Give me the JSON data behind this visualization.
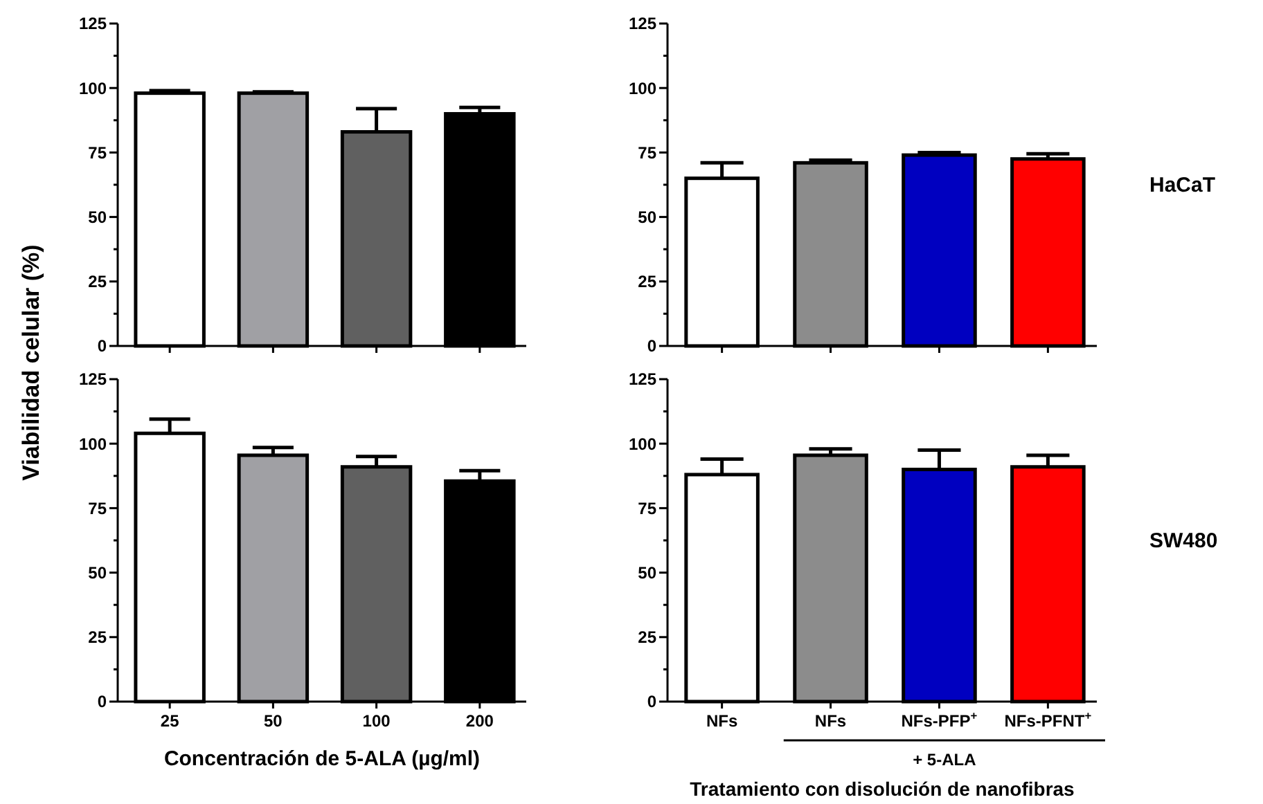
{
  "chart_data": [
    {
      "type": "bar",
      "ylabel": "Viabilidad celular (%)",
      "categories": [
        null,
        null,
        null,
        null
      ],
      "values": [
        98,
        98,
        83,
        90
      ],
      "errors": [
        1,
        0.5,
        9,
        2.5
      ],
      "colors": [
        "#ffffff",
        "#a0a0a4",
        "#606060",
        "#000000"
      ],
      "ylim": [
        0,
        125
      ],
      "yticks": [
        0,
        {
          "value": 12.5,
          "label": null
        },
        25,
        {
          "value": 37.5,
          "label": null
        },
        50,
        {
          "value": 62.5,
          "label": null
        },
        75,
        {
          "value": 87.5,
          "label": null
        },
        100,
        {
          "value": 112.5,
          "label": null
        },
        125
      ]
    },
    {
      "type": "bar",
      "categories": [
        null,
        null,
        null,
        null
      ],
      "values": [
        65,
        71,
        74,
        72.5
      ],
      "errors": [
        6,
        1,
        1,
        2
      ],
      "colors": [
        "#ffffff",
        "#8c8c8c",
        "#0000c0",
        "#ff0000"
      ],
      "ylim": [
        0,
        125
      ],
      "yticks": [
        0,
        {
          "value": 12.5,
          "label": null
        },
        25,
        {
          "value": 37.5,
          "label": null
        },
        50,
        {
          "value": 62.5,
          "label": null
        },
        75,
        {
          "value": 87.5,
          "label": null
        },
        100,
        {
          "value": 112.5,
          "label": null
        },
        125
      ],
      "annotations": [
        "HaCaT"
      ]
    },
    {
      "type": "bar",
      "xlabel": "Concentración de 5-ALA (µg/ml)",
      "categories": [
        "25",
        "50",
        "100",
        "200"
      ],
      "values": [
        104,
        95.5,
        91,
        85.5
      ],
      "errors": [
        5.5,
        3,
        4,
        4
      ],
      "colors": [
        "#ffffff",
        "#a0a0a4",
        "#606060",
        "#000000"
      ],
      "ylim": [
        0,
        125
      ],
      "yticks": [
        0,
        {
          "value": 12.5,
          "label": null
        },
        25,
        {
          "value": 37.5,
          "label": null
        },
        50,
        {
          "value": 62.5,
          "label": null
        },
        75,
        {
          "value": 87.5,
          "label": null
        },
        100,
        {
          "value": 112.5,
          "label": null
        },
        125
      ]
    },
    {
      "type": "bar",
      "xlabel": "Tratamiento con disolución de nanofibras",
      "categories": [
        "NFs",
        "NFs",
        "NFs-PFP$^{+}$",
        "NFs-PFNT$^{+}$"
      ],
      "values": [
        88,
        95.5,
        90,
        91
      ],
      "errors": [
        6,
        2.5,
        7.5,
        4.5
      ],
      "colors": [
        "#ffffff",
        "#8c8c8c",
        "#0000c0",
        "#ff0000"
      ],
      "ylim": [
        0,
        125
      ],
      "yticks": [
        0,
        {
          "value": 12.5,
          "label": null
        },
        25,
        {
          "value": 37.5,
          "label": null
        },
        50,
        {
          "value": 62.5,
          "label": null
        },
        75,
        {
          "value": 87.5,
          "label": null
        },
        100,
        {
          "value": 112.5,
          "label": null
        },
        125
      ],
      "annotations": [
        "+ 5-ALA",
        "SW480"
      ]
    }
  ]
}
